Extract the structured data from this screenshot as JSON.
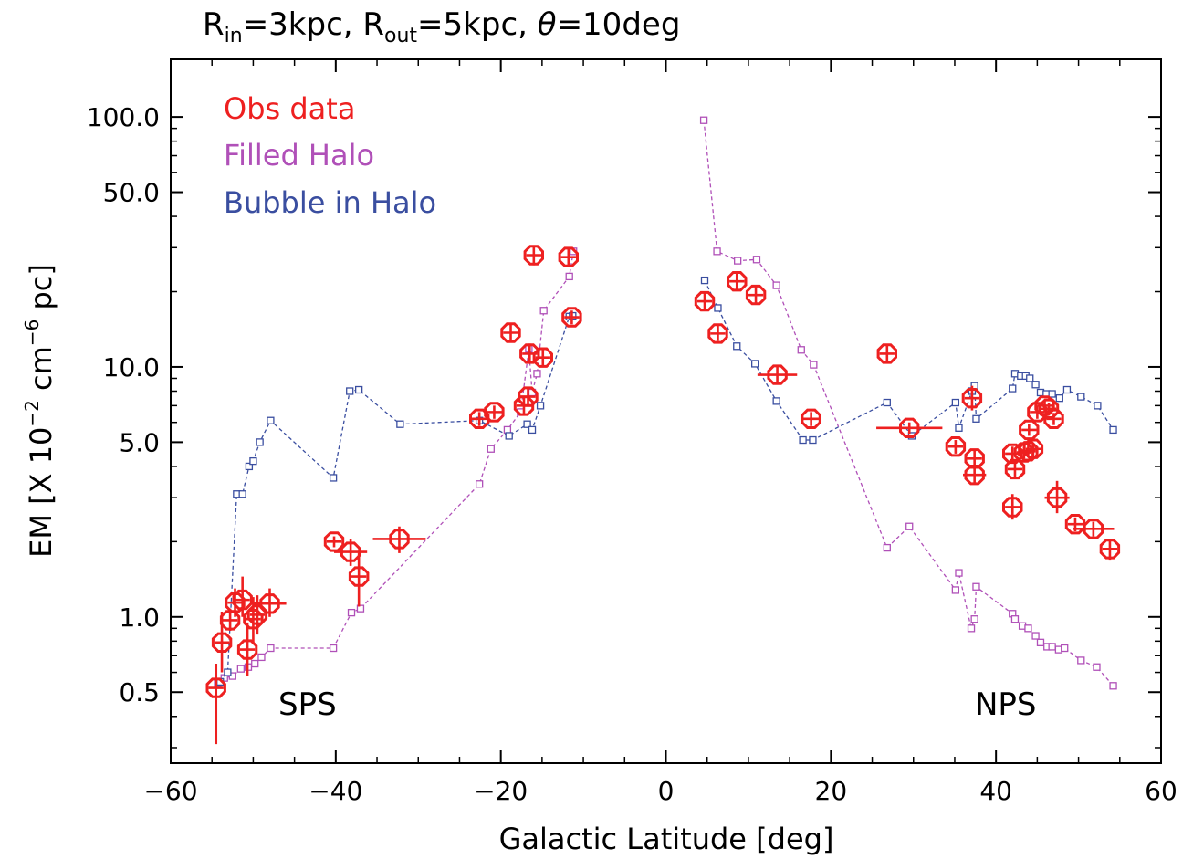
{
  "chart_data": {
    "type": "scatter",
    "title": {
      "prefix_in": "R",
      "sub_in": "in",
      "mid_in": "=3kpc, R",
      "sub_out": "out",
      "mid_out": "=5kpc, ",
      "theta": "θ",
      "suffix": "=10deg"
    },
    "xlabel": "Galactic Latitude [deg]",
    "ylabel": {
      "main": "EM [X 10",
      "exp1": "−2",
      "mid": " cm",
      "exp2": "−6",
      "end": " pc]"
    },
    "xlim": [
      -60,
      60
    ],
    "ylim": [
      0.26,
      170
    ],
    "yscale": "log",
    "x_ticks": [
      -60,
      -40,
      -20,
      0,
      20,
      40,
      60
    ],
    "x_tick_labels": [
      "−60",
      "−40",
      "−20",
      "0",
      "20",
      "40",
      "60"
    ],
    "y_ticks": [
      0.5,
      1.0,
      5.0,
      10.0,
      50.0,
      100.0
    ],
    "y_tick_labels": [
      "0.5",
      "1.0",
      "5.0",
      "10.0",
      "50.0",
      "100.0"
    ],
    "grid": false,
    "legend_position": "top-left",
    "legend": [
      "Obs data",
      "Filled Halo",
      "Bubble in Halo"
    ],
    "annotations": [
      "SPS",
      "NPS"
    ],
    "colors": {
      "obs": "#ee2020",
      "filled_halo": "#b050b8",
      "bubble": "#3a4ea0",
      "axis": "#000000"
    },
    "series": [
      {
        "name": "Obs data",
        "style": "octagon-errorbars",
        "points": [
          {
            "x": -54.5,
            "y": 0.52,
            "ylo": 0.31,
            "yhi": 0.65,
            "xerr": 0
          },
          {
            "x": -53.8,
            "y": 0.79,
            "ylo": 0.6,
            "yhi": 1.05,
            "xerr": 0
          },
          {
            "x": -52.8,
            "y": 0.97,
            "ylo": 0.88,
            "yhi": 1.08,
            "xerr": 0
          },
          {
            "x": -52.2,
            "y": 1.14,
            "ylo": 1.0,
            "yhi": 1.3,
            "xerr": 0
          },
          {
            "x": -51.3,
            "y": 1.17,
            "ylo": 1.0,
            "yhi": 1.45,
            "xerr": 0
          },
          {
            "x": -50.7,
            "y": 0.74,
            "ylo": 0.58,
            "yhi": 0.95,
            "xerr": 0
          },
          {
            "x": -50.0,
            "y": 0.98,
            "ylo": 0.78,
            "yhi": 1.2,
            "xerr": 0
          },
          {
            "x": -49.5,
            "y": 1.02,
            "ylo": 0.85,
            "yhi": 1.22,
            "xerr": 0
          },
          {
            "x": -48.0,
            "y": 1.13,
            "ylo": 1.0,
            "yhi": 1.3,
            "xerr": 2.0
          },
          {
            "x": -40.2,
            "y": 2.0,
            "ylo": 1.9,
            "yhi": 2.1,
            "xerr": 0
          },
          {
            "x": -38.2,
            "y": 1.82,
            "ylo": 1.6,
            "yhi": 2.05,
            "xerr": 2.0
          },
          {
            "x": -37.2,
            "y": 1.45,
            "ylo": 1.1,
            "yhi": 1.8,
            "xerr": 0
          },
          {
            "x": -32.3,
            "y": 2.05,
            "ylo": 1.8,
            "yhi": 2.3,
            "xerr": 3.2
          },
          {
            "x": -22.6,
            "y": 6.2,
            "ylo": 5.8,
            "yhi": 6.6,
            "xerr": 0
          },
          {
            "x": -20.8,
            "y": 6.6,
            "ylo": 6.2,
            "yhi": 7.0,
            "xerr": 1.0
          },
          {
            "x": -18.8,
            "y": 13.7,
            "ylo": 12.5,
            "yhi": 15.0,
            "xerr": 0
          },
          {
            "x": -17.2,
            "y": 7.0,
            "ylo": 6.4,
            "yhi": 7.6,
            "xerr": 0
          },
          {
            "x": -16.7,
            "y": 7.6,
            "ylo": 7.0,
            "yhi": 8.3,
            "xerr": 0
          },
          {
            "x": -16.5,
            "y": 11.3,
            "ylo": 10.3,
            "yhi": 12.4,
            "xerr": 0
          },
          {
            "x": -16.0,
            "y": 28.0,
            "ylo": 25.5,
            "yhi": 30.5,
            "xerr": 0
          },
          {
            "x": -14.9,
            "y": 10.9,
            "ylo": 10.0,
            "yhi": 11.8,
            "xerr": 0
          },
          {
            "x": -11.8,
            "y": 27.5,
            "ylo": 25.0,
            "yhi": 30.0,
            "xerr": 0
          },
          {
            "x": -11.4,
            "y": 15.8,
            "ylo": 14.8,
            "yhi": 16.8,
            "xerr": 0
          },
          {
            "x": 4.7,
            "y": 18.3,
            "ylo": 16.9,
            "yhi": 19.8,
            "xerr": 0
          },
          {
            "x": 6.3,
            "y": 13.6,
            "ylo": 12.7,
            "yhi": 14.6,
            "xerr": 0
          },
          {
            "x": 8.6,
            "y": 22.0,
            "ylo": 20.5,
            "yhi": 23.6,
            "xerr": 0
          },
          {
            "x": 10.9,
            "y": 19.4,
            "ylo": 18.0,
            "yhi": 20.9,
            "xerr": 0
          },
          {
            "x": 13.5,
            "y": 9.3,
            "ylo": 8.6,
            "yhi": 10.0,
            "xerr": 2.4
          },
          {
            "x": 17.6,
            "y": 6.2,
            "ylo": 5.8,
            "yhi": 6.6,
            "xerr": 1.2
          },
          {
            "x": 26.8,
            "y": 11.3,
            "ylo": 10.4,
            "yhi": 12.2,
            "xerr": 0
          },
          {
            "x": 29.5,
            "y": 5.7,
            "ylo": 5.4,
            "yhi": 6.0,
            "xerr": 4.0
          },
          {
            "x": 35.1,
            "y": 4.8,
            "ylo": 4.5,
            "yhi": 5.1,
            "xerr": 0
          },
          {
            "x": 37.1,
            "y": 7.5,
            "ylo": 6.7,
            "yhi": 8.4,
            "xerr": 0
          },
          {
            "x": 37.4,
            "y": 4.3,
            "ylo": 3.9,
            "yhi": 4.7,
            "xerr": 0
          },
          {
            "x": 37.4,
            "y": 3.7,
            "ylo": 3.4,
            "yhi": 4.0,
            "xerr": 1.4
          },
          {
            "x": 42.0,
            "y": 2.75,
            "ylo": 2.45,
            "yhi": 3.1,
            "xerr": 0
          },
          {
            "x": 42.0,
            "y": 4.5,
            "ylo": 4.2,
            "yhi": 4.8,
            "xerr": 0
          },
          {
            "x": 42.3,
            "y": 3.9,
            "ylo": 3.6,
            "yhi": 4.2,
            "xerr": 0
          },
          {
            "x": 43.4,
            "y": 4.55,
            "ylo": 4.3,
            "yhi": 4.8,
            "xerr": 0
          },
          {
            "x": 43.9,
            "y": 4.6,
            "ylo": 4.35,
            "yhi": 4.85,
            "xerr": 0
          },
          {
            "x": 44.0,
            "y": 5.6,
            "ylo": 5.3,
            "yhi": 5.9,
            "xerr": 0
          },
          {
            "x": 44.5,
            "y": 4.7,
            "ylo": 4.45,
            "yhi": 4.95,
            "xerr": 0
          },
          {
            "x": 45.0,
            "y": 6.6,
            "ylo": 6.2,
            "yhi": 7.0,
            "xerr": 0
          },
          {
            "x": 45.9,
            "y": 7.0,
            "ylo": 6.6,
            "yhi": 7.4,
            "xerr": 0
          },
          {
            "x": 46.4,
            "y": 6.8,
            "ylo": 6.4,
            "yhi": 7.2,
            "xerr": 0
          },
          {
            "x": 47.0,
            "y": 6.2,
            "ylo": 5.85,
            "yhi": 6.55,
            "xerr": 0
          },
          {
            "x": 47.4,
            "y": 3.0,
            "ylo": 2.6,
            "yhi": 3.5,
            "xerr": 1.5
          },
          {
            "x": 49.6,
            "y": 2.35,
            "ylo": 2.2,
            "yhi": 2.5,
            "xerr": 0
          },
          {
            "x": 51.8,
            "y": 2.25,
            "ylo": 2.1,
            "yhi": 2.4,
            "xerr": 2.5
          },
          {
            "x": 53.8,
            "y": 1.87,
            "ylo": 1.68,
            "yhi": 2.05,
            "xerr": 0
          }
        ]
      },
      {
        "name": "Filled Halo",
        "style": "dashed-squares",
        "segments": [
          [
            [
              -54.3,
              0.54
            ],
            [
              -53.5,
              0.57
            ],
            [
              -52.5,
              0.58
            ],
            [
              -51.5,
              0.62
            ],
            [
              -50.6,
              0.63
            ],
            [
              -49.8,
              0.65
            ],
            [
              -49.0,
              0.69
            ],
            [
              -47.9,
              0.75
            ],
            [
              -40.3,
              0.75
            ],
            [
              -38.1,
              1.04
            ],
            [
              -37.0,
              1.08
            ],
            [
              -22.6,
              3.4
            ],
            [
              -21.2,
              4.7
            ],
            [
              -19.2,
              5.6
            ],
            [
              -17.6,
              6.6
            ],
            [
              -16.6,
              11.8
            ],
            [
              -16.2,
              7.9
            ],
            [
              -15.6,
              9.4
            ],
            [
              -14.8,
              16.8
            ],
            [
              -11.7,
              23.0
            ],
            [
              -11.2,
              29.0
            ]
          ],
          [
            [
              4.6,
              97.0
            ],
            [
              6.2,
              29.0
            ],
            [
              8.7,
              26.6
            ],
            [
              11.0,
              26.9
            ],
            [
              13.4,
              21.2
            ],
            [
              16.4,
              11.7
            ],
            [
              17.9,
              10.2
            ],
            [
              26.8,
              1.89
            ],
            [
              29.5,
              2.3
            ],
            [
              35.1,
              1.28
            ],
            [
              35.5,
              1.5
            ],
            [
              37.0,
              0.9
            ],
            [
              37.4,
              0.98
            ],
            [
              37.6,
              1.32
            ],
            [
              42.0,
              1.03
            ],
            [
              42.3,
              0.98
            ],
            [
              43.2,
              0.92
            ],
            [
              43.9,
              0.9
            ],
            [
              44.8,
              0.84
            ],
            [
              45.4,
              0.79
            ],
            [
              46.2,
              0.76
            ],
            [
              46.8,
              0.76
            ],
            [
              47.6,
              0.74
            ],
            [
              48.3,
              0.75
            ],
            [
              50.3,
              0.67
            ],
            [
              52.2,
              0.63
            ],
            [
              54.2,
              0.53
            ]
          ]
        ]
      },
      {
        "name": "Bubble in Halo",
        "style": "dashed-squares",
        "segments": [
          [
            [
              -54.0,
              0.55
            ],
            [
              -53.1,
              0.6
            ],
            [
              -52.0,
              3.1
            ],
            [
              -51.3,
              3.1
            ],
            [
              -50.5,
              4.0
            ],
            [
              -50.0,
              4.2
            ],
            [
              -49.2,
              5.0
            ],
            [
              -47.9,
              6.1
            ],
            [
              -40.3,
              3.6
            ],
            [
              -38.3,
              8.0
            ],
            [
              -37.2,
              8.1
            ],
            [
              -32.2,
              5.9
            ],
            [
              -22.6,
              6.1
            ],
            [
              -19.0,
              5.3
            ],
            [
              -16.8,
              5.9
            ],
            [
              -16.2,
              5.6
            ],
            [
              -15.2,
              7.0
            ],
            [
              -11.7,
              15.9
            ],
            [
              -11.3,
              16.0
            ]
          ],
          [
            [
              4.7,
              22.2
            ],
            [
              6.3,
              17.2
            ],
            [
              8.6,
              12.1
            ],
            [
              10.8,
              10.3
            ],
            [
              13.4,
              7.3
            ],
            [
              16.6,
              5.1
            ],
            [
              17.8,
              5.1
            ],
            [
              26.8,
              7.2
            ],
            [
              29.8,
              5.3
            ],
            [
              35.1,
              7.2
            ],
            [
              35.5,
              5.7
            ],
            [
              37.1,
              8.0
            ],
            [
              37.4,
              8.4
            ],
            [
              37.6,
              6.2
            ],
            [
              42.0,
              8.2
            ],
            [
              42.3,
              9.4
            ],
            [
              43.0,
              9.2
            ],
            [
              43.6,
              9.2
            ],
            [
              44.1,
              9.0
            ],
            [
              44.8,
              8.5
            ],
            [
              45.4,
              7.9
            ],
            [
              46.1,
              7.8
            ],
            [
              46.8,
              7.8
            ],
            [
              47.7,
              7.5
            ],
            [
              48.6,
              8.1
            ],
            [
              50.3,
              7.6
            ],
            [
              52.3,
              7.0
            ],
            [
              54.2,
              5.6
            ]
          ]
        ]
      }
    ]
  }
}
